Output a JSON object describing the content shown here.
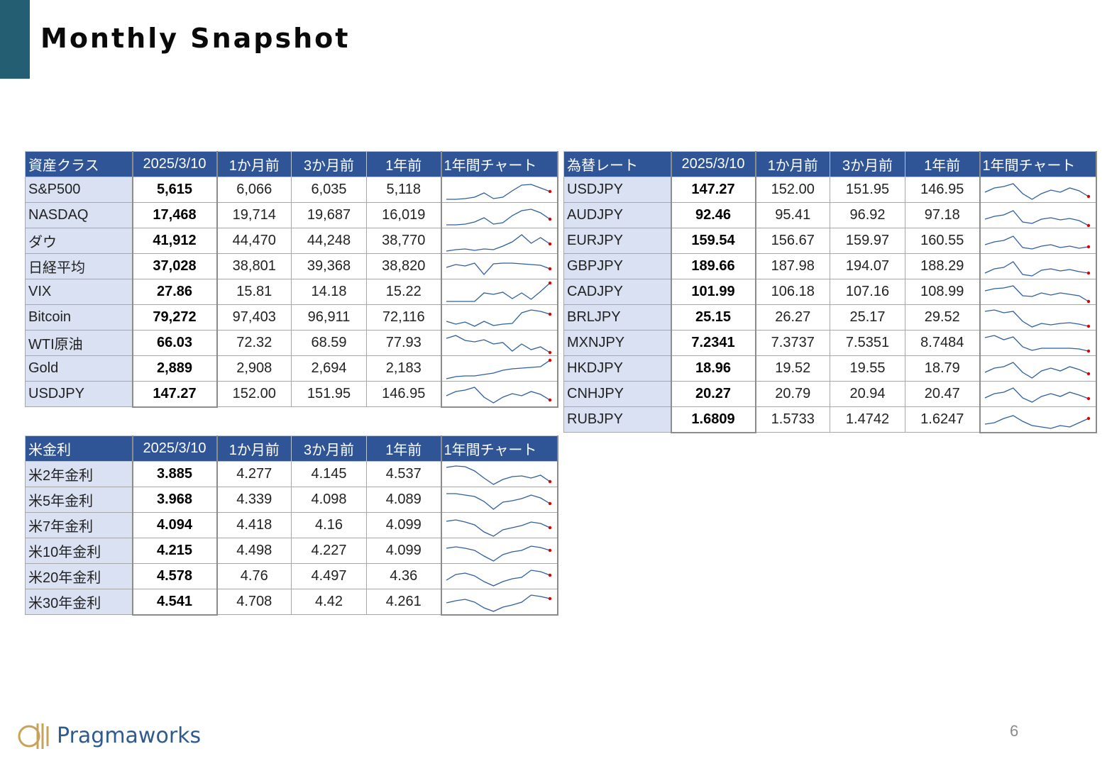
{
  "page": {
    "title": "Monthly Snapshot",
    "page_number": "6",
    "accent_color": "#245e73"
  },
  "logo": {
    "name": "Pragmaworks",
    "icon": "pragmaworks-emblem-icon"
  },
  "colors": {
    "header_bg": "#2f5597",
    "label_bg": "#dae1f2",
    "spark_line": "#2f5f9e",
    "spark_end_dot": "#e00000"
  },
  "tables": {
    "assets": {
      "headers": [
        "資産クラス",
        "2025/3/10",
        "1か月前",
        "3か月前",
        "1年前",
        "1年間チャート"
      ],
      "rows": [
        {
          "label": "S&P500",
          "current": "5,615",
          "m1": "6,066",
          "m3": "6,035",
          "y1": "5,118",
          "spark": [
            30,
            30,
            29,
            27,
            21,
            29,
            27,
            18,
            10,
            9,
            14,
            19
          ]
        },
        {
          "label": "NASDAQ",
          "current": "17,468",
          "m1": "19,714",
          "m3": "19,687",
          "y1": "16,019",
          "spark": [
            30,
            30,
            29,
            26,
            20,
            29,
            27,
            17,
            10,
            8,
            13,
            22
          ]
        },
        {
          "label": "ダウ",
          "current": "41,912",
          "m1": "44,470",
          "m3": "44,248",
          "y1": "38,770",
          "spark": [
            31,
            29,
            28,
            30,
            28,
            29,
            24,
            18,
            8,
            20,
            12,
            21
          ]
        },
        {
          "label": "日経平均",
          "current": "37,028",
          "m1": "38,801",
          "m3": "39,368",
          "y1": "38,820",
          "spark": [
            18,
            14,
            16,
            12,
            28,
            13,
            12,
            12,
            13,
            14,
            15,
            20
          ]
        },
        {
          "label": "VIX",
          "current": "27.86",
          "m1": "15.81",
          "m3": "14.18",
          "y1": "15.22",
          "spark": [
            30,
            30,
            30,
            30,
            18,
            20,
            17,
            26,
            18,
            27,
            16,
            4
          ]
        },
        {
          "label": "Bitcoin",
          "current": "79,272",
          "m1": "97,403",
          "m3": "96,911",
          "y1": "72,116",
          "spark": [
            22,
            26,
            23,
            29,
            22,
            28,
            26,
            25,
            10,
            6,
            8,
            12
          ]
        },
        {
          "label": "WTI原油",
          "current": "66.03",
          "m1": "72.32",
          "m3": "68.59",
          "y1": "77.93",
          "spark": [
            10,
            6,
            13,
            15,
            12,
            18,
            16,
            28,
            18,
            26,
            22,
            30
          ]
        },
        {
          "label": "Gold",
          "current": "2,889",
          "m1": "2,908",
          "m3": "2,694",
          "y1": "2,183",
          "spark": [
            31,
            28,
            27,
            27,
            25,
            23,
            19,
            17,
            16,
            15,
            14,
            5
          ]
        },
        {
          "label": "USDJPY",
          "current": "147.27",
          "m1": "152.00",
          "m3": "151.95",
          "y1": "146.95",
          "spark": [
            20,
            14,
            12,
            8,
            22,
            30,
            22,
            17,
            20,
            14,
            18,
            26
          ]
        }
      ]
    },
    "rates": {
      "headers": [
        "米金利",
        "2025/3/10",
        "1か月前",
        "3か月前",
        "1年前",
        "1年間チャート"
      ],
      "rows": [
        {
          "label": "米2年金利",
          "current": "3.885",
          "m1": "4.277",
          "m3": "4.145",
          "y1": "4.537",
          "spark": [
            7,
            5,
            6,
            12,
            22,
            31,
            24,
            20,
            19,
            22,
            18,
            27
          ]
        },
        {
          "label": "米5年金利",
          "current": "3.968",
          "m1": "4.339",
          "m3": "4.098",
          "y1": "4.089",
          "spark": [
            8,
            8,
            10,
            12,
            19,
            30,
            20,
            18,
            15,
            10,
            14,
            22
          ]
        },
        {
          "label": "米7年金利",
          "current": "4.094",
          "m1": "4.418",
          "m3": "4.16",
          "y1": "4.099",
          "spark": [
            11,
            9,
            12,
            16,
            26,
            32,
            23,
            20,
            17,
            12,
            14,
            20
          ]
        },
        {
          "label": "米10年金利",
          "current": "4.215",
          "m1": "4.498",
          "m3": "4.227",
          "y1": "4.099",
          "spark": [
            13,
            11,
            13,
            16,
            24,
            31,
            22,
            18,
            16,
            10,
            12,
            16
          ]
        },
        {
          "label": "米20年金利",
          "current": "4.578",
          "m1": "4.76",
          "m3": "4.497",
          "y1": "4.36",
          "spark": [
            22,
            14,
            12,
            16,
            24,
            30,
            24,
            20,
            18,
            8,
            10,
            15
          ]
        },
        {
          "label": "米30年金利",
          "current": "4.541",
          "m1": "4.708",
          "m3": "4.42",
          "y1": "4.261",
          "spark": [
            19,
            16,
            14,
            18,
            26,
            31,
            25,
            22,
            18,
            8,
            10,
            13
          ]
        }
      ]
    },
    "fx": {
      "headers": [
        "為替レート",
        "2025/3/10",
        "1か月前",
        "3か月前",
        "1年前",
        "1年間チャート"
      ],
      "rows": [
        {
          "label": "USDJPY",
          "current": "147.27",
          "m1": "152.00",
          "m3": "151.95",
          "y1": "146.95",
          "spark": [
            20,
            14,
            12,
            8,
            22,
            30,
            22,
            17,
            20,
            14,
            18,
            26
          ]
        },
        {
          "label": "AUDJPY",
          "current": "92.46",
          "m1": "95.41",
          "m3": "96.92",
          "y1": "97.18",
          "spark": [
            22,
            18,
            16,
            10,
            26,
            28,
            22,
            20,
            23,
            21,
            24,
            31
          ]
        },
        {
          "label": "EURJPY",
          "current": "159.54",
          "m1": "156.67",
          "m3": "159.97",
          "y1": "160.55",
          "spark": [
            22,
            18,
            16,
            10,
            26,
            28,
            24,
            22,
            26,
            24,
            27,
            25
          ]
        },
        {
          "label": "GBPJPY",
          "current": "189.66",
          "m1": "187.98",
          "m3": "194.07",
          "y1": "188.29",
          "spark": [
            26,
            20,
            18,
            10,
            28,
            30,
            22,
            20,
            23,
            21,
            24,
            26
          ]
        },
        {
          "label": "CADJPY",
          "current": "101.99",
          "m1": "106.18",
          "m3": "107.16",
          "y1": "108.99",
          "spark": [
            15,
            12,
            11,
            8,
            22,
            23,
            18,
            21,
            18,
            20,
            22,
            30
          ]
        },
        {
          "label": "BRLJPY",
          "current": "25.15",
          "m1": "26.27",
          "m3": "25.17",
          "y1": "29.52",
          "spark": [
            8,
            6,
            10,
            8,
            22,
            30,
            25,
            27,
            25,
            24,
            26,
            29
          ]
        },
        {
          "label": "MXNJPY",
          "current": "7.2341",
          "m1": "7.3737",
          "m3": "7.5351",
          "y1": "8.7484",
          "spark": [
            9,
            6,
            12,
            8,
            22,
            27,
            24,
            24,
            24,
            24,
            25,
            28
          ]
        },
        {
          "label": "HKDJPY",
          "current": "18.96",
          "m1": "19.52",
          "m3": "19.55",
          "y1": "18.79",
          "spark": [
            22,
            16,
            14,
            8,
            22,
            30,
            20,
            16,
            20,
            14,
            18,
            24
          ]
        },
        {
          "label": "CNHJPY",
          "current": "20.27",
          "m1": "20.79",
          "m3": "20.94",
          "y1": "20.47",
          "spark": [
            22,
            16,
            14,
            8,
            22,
            28,
            20,
            16,
            20,
            14,
            18,
            23
          ]
        },
        {
          "label": "RUBJPY",
          "current": "1.6809",
          "m1": "1.5733",
          "m3": "1.4742",
          "y1": "1.6247",
          "spark": [
            24,
            22,
            16,
            12,
            20,
            26,
            28,
            30,
            26,
            28,
            22,
            16
          ]
        }
      ]
    }
  }
}
